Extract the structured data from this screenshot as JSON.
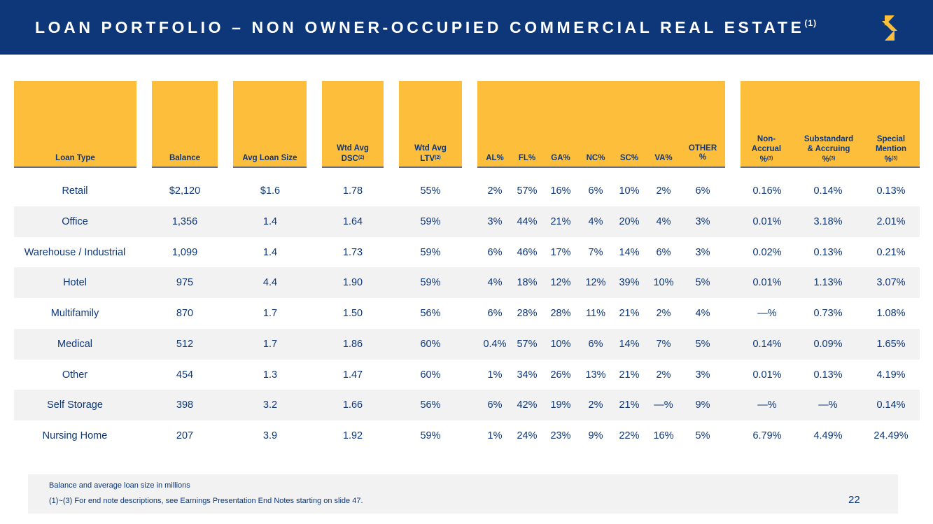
{
  "title": {
    "text": "LOAN PORTFOLIO – NON OWNER-OCCUPIED COMMERCIAL REAL ESTATE",
    "superscript": "(1)"
  },
  "logo": {
    "icon": "brand-logo-icon",
    "color": "#fdbe3c"
  },
  "colors": {
    "navy": "#0d3779",
    "gold": "#fdbe3c",
    "stripe": "#f2f2f2"
  },
  "headers": {
    "loan_type": "Loan Type",
    "balance": "Balance",
    "avg_loan_size": "Avg Loan Size",
    "dsc_line1": "Wtd Avg",
    "dsc_line2": "DSC",
    "dsc_sup": "(2)",
    "ltv_line1": "Wtd Avg",
    "ltv_line2": "LTV",
    "ltv_sup": "(2)",
    "al": "AL%",
    "fl": "FL%",
    "ga": "GA%",
    "nc": "NC%",
    "sc": "SC%",
    "va": "VA%",
    "other_line1": "OTHER",
    "other_line2": "%",
    "nonaccrual_line1": "Non-",
    "nonaccrual_line2": "Accrual",
    "nonaccrual_line3": "%",
    "nonaccrual_sup": "(3)",
    "substandard_line1": "Substandard",
    "substandard_line2": "& Accruing",
    "substandard_line3": "%",
    "substandard_sup": "(3)",
    "special_line1": "Special",
    "special_line2": "Mention",
    "special_line3": "%",
    "special_sup": "(3)"
  },
  "rows": [
    [
      "Retail",
      "$2,120",
      "$1.6",
      "1.78",
      "55%",
      "2%",
      "57%",
      "16%",
      "6%",
      "10%",
      "2%",
      "6%",
      "0.16%",
      "0.14%",
      "0.13%"
    ],
    [
      "Office",
      "1,356",
      "1.4",
      "1.64",
      "59%",
      "3%",
      "44%",
      "21%",
      "4%",
      "20%",
      "4%",
      "3%",
      "0.01%",
      "3.18%",
      "2.01%"
    ],
    [
      "Warehouse / Industrial",
      "1,099",
      "1.4",
      "1.73",
      "59%",
      "6%",
      "46%",
      "17%",
      "7%",
      "14%",
      "6%",
      "3%",
      "0.02%",
      "0.13%",
      "0.21%"
    ],
    [
      "Hotel",
      "975",
      "4.4",
      "1.90",
      "59%",
      "4%",
      "18%",
      "12%",
      "12%",
      "39%",
      "10%",
      "5%",
      "0.01%",
      "1.13%",
      "3.07%"
    ],
    [
      "Multifamily",
      "870",
      "1.7",
      "1.50",
      "56%",
      "6%",
      "28%",
      "28%",
      "11%",
      "21%",
      "2%",
      "4%",
      "—%",
      "0.73%",
      "1.08%"
    ],
    [
      "Medical",
      "512",
      "1.7",
      "1.86",
      "60%",
      "0.4%",
      "57%",
      "10%",
      "6%",
      "14%",
      "7%",
      "5%",
      "0.14%",
      "0.09%",
      "1.65%"
    ],
    [
      "Other",
      "454",
      "1.3",
      "1.47",
      "60%",
      "1%",
      "34%",
      "26%",
      "13%",
      "21%",
      "2%",
      "3%",
      "0.01%",
      "0.13%",
      "4.19%"
    ],
    [
      "Self Storage",
      "398",
      "3.2",
      "1.66",
      "56%",
      "6%",
      "42%",
      "19%",
      "2%",
      "21%",
      "—%",
      "9%",
      "—%",
      "—%",
      "0.14%"
    ],
    [
      "Nursing Home",
      "207",
      "3.9",
      "1.92",
      "59%",
      "1%",
      "24%",
      "23%",
      "9%",
      "22%",
      "16%",
      "5%",
      "6.79%",
      "4.49%",
      "24.49%"
    ]
  ],
  "notes": {
    "line1": "Balance and average loan size in millions",
    "line2": "(1)~(3)  For end note descriptions, see Earnings Presentation End Notes starting on slide 47."
  },
  "page_number": "22"
}
